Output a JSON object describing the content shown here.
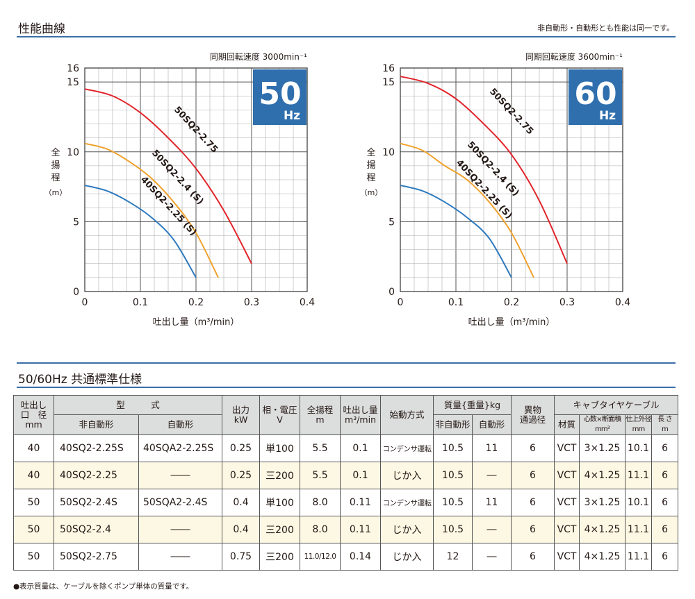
{
  "section1": {
    "title": "性能曲線",
    "note": "非自動形・自動形とも性能は同一です。"
  },
  "charts_common": {
    "ylabel_chars": [
      "全",
      "揚",
      "程"
    ],
    "yunit": "（m）",
    "xlabel": "吐出し量（m³/min）"
  },
  "chart_data": [
    {
      "type": "line",
      "speed_label": "同期回転速度 3000min⁻¹",
      "badge_big": "50",
      "badge_small": "Hz",
      "xlabel": "吐出し量（m³/min）",
      "ylabel": "全揚程（m）",
      "xlim": [
        0,
        0.4
      ],
      "ylim": [
        0,
        16
      ],
      "x_ticks": [
        "0",
        "0.1",
        "0.2",
        "0.3",
        "0.4"
      ],
      "y_ticks": [
        "0",
        "5",
        "10",
        "15",
        "16"
      ],
      "grid": true,
      "series": [
        {
          "name": "50SQ2-2.75",
          "color": "#e2242b",
          "points": [
            [
              0,
              14.5
            ],
            [
              0.05,
              14.0
            ],
            [
              0.1,
              12.8
            ],
            [
              0.15,
              11.0
            ],
            [
              0.2,
              8.8
            ],
            [
              0.25,
              5.8
            ],
            [
              0.3,
              2.0
            ]
          ]
        },
        {
          "name": "50SQ2-2.4 (S)",
          "color": "#f0a22e",
          "points": [
            [
              0,
              10.6
            ],
            [
              0.04,
              10.2
            ],
            [
              0.08,
              9.3
            ],
            [
              0.12,
              8.1
            ],
            [
              0.16,
              6.4
            ],
            [
              0.2,
              4.2
            ],
            [
              0.24,
              1.0
            ]
          ]
        },
        {
          "name": "40SQ2-2.25 (S)",
          "color": "#2d79be",
          "points": [
            [
              0,
              7.6
            ],
            [
              0.04,
              7.2
            ],
            [
              0.08,
              6.4
            ],
            [
              0.12,
              5.3
            ],
            [
              0.16,
              3.7
            ],
            [
              0.2,
              1.0
            ]
          ]
        }
      ]
    },
    {
      "type": "line",
      "speed_label": "同期回転速度 3600min⁻¹",
      "badge_big": "60",
      "badge_small": "Hz",
      "xlabel": "吐出し量（m³/min）",
      "ylabel": "全揚程（m）",
      "xlim": [
        0,
        0.4
      ],
      "ylim": [
        0,
        16
      ],
      "x_ticks": [
        "0",
        "0.1",
        "0.2",
        "0.3",
        "0.4"
      ],
      "y_ticks": [
        "0",
        "5",
        "10",
        "15",
        "16"
      ],
      "grid": true,
      "series": [
        {
          "name": "50SQ2-2.75",
          "color": "#e2242b",
          "points": [
            [
              0,
              15.4
            ],
            [
              0.05,
              14.9
            ],
            [
              0.1,
              13.8
            ],
            [
              0.15,
              12.0
            ],
            [
              0.2,
              9.8
            ],
            [
              0.25,
              6.5
            ],
            [
              0.3,
              2.0
            ]
          ]
        },
        {
          "name": "50SQ2-2.4 (S)",
          "color": "#f0a22e",
          "points": [
            [
              0,
              10.6
            ],
            [
              0.04,
              10.1
            ],
            [
              0.08,
              9.0
            ],
            [
              0.12,
              8.0
            ],
            [
              0.16,
              6.4
            ],
            [
              0.2,
              4.2
            ],
            [
              0.24,
              1.0
            ]
          ]
        },
        {
          "name": "40SQ2-2.25 (S)",
          "color": "#2d79be",
          "points": [
            [
              0,
              7.6
            ],
            [
              0.04,
              7.2
            ],
            [
              0.08,
              6.4
            ],
            [
              0.12,
              5.3
            ],
            [
              0.16,
              3.8
            ],
            [
              0.2,
              1.0
            ]
          ]
        }
      ]
    }
  ],
  "section2": {
    "title": "50/60Hz 共通標準仕様"
  },
  "table": {
    "h_bore": "吐出し",
    "h_bore2": "口　径",
    "h_bore_unit": "mm",
    "h_model": "型　　　式",
    "h_model_manual": "非自動形",
    "h_model_auto": "自動形",
    "h_output": "出力",
    "h_output_unit": "kW",
    "h_phase": "相・電圧",
    "h_phase_unit": "V",
    "h_head": "全揚程",
    "h_head_unit": "m",
    "h_flow": "吐出し量",
    "h_flow_unit": "m³/min",
    "h_start": "始動方式",
    "h_mass": "質量{重量}kg",
    "h_mass_manual": "非自動形",
    "h_mass_auto": "自動形",
    "h_solid": "異物",
    "h_solid2": "通過径",
    "h_solid_unit": "mm",
    "h_cable": "キャブタイヤケーブル",
    "h_cable_mat": "材質",
    "h_cable_core": "心数×断面積",
    "h_cable_core_unit": "mm²",
    "h_cable_od": "仕上外径",
    "h_cable_od_unit": "mm",
    "h_cable_len": "長 さ",
    "h_cable_len_unit": "m",
    "rows": [
      [
        "40",
        "40SQ2-2.25S",
        "40SQA2-2.25S",
        "0.25",
        "単100",
        "5.5",
        "0.1",
        "コンデンサ運転",
        "10.5",
        "11",
        "6",
        "VCT",
        "3×1.25",
        "10.1",
        "6"
      ],
      [
        "40",
        "40SQ2-2.25",
        "――",
        "0.25",
        "三200",
        "5.5",
        "0.1",
        "じか入",
        "10.5",
        "―",
        "6",
        "VCT",
        "4×1.25",
        "11.1",
        "6"
      ],
      [
        "50",
        "50SQ2-2.4S",
        "50SQA2-2.4S",
        "0.4",
        "単100",
        "8.0",
        "0.11",
        "コンデンサ運転",
        "10.5",
        "11",
        "6",
        "VCT",
        "3×1.25",
        "10.1",
        "6"
      ],
      [
        "50",
        "50SQ2-2.4",
        "――",
        "0.4",
        "三200",
        "8.0",
        "0.11",
        "じか入",
        "10.5",
        "―",
        "6",
        "VCT",
        "4×1.25",
        "11.1",
        "6"
      ],
      [
        "50",
        "50SQ2-2.75",
        "――",
        "0.75",
        "三200",
        "11.0/12.0",
        "0.14",
        "じか入",
        "12",
        "―",
        "6",
        "VCT",
        "4×1.25",
        "11.1",
        "6"
      ]
    ]
  },
  "footnote": "●表示質量は、ケーブルを除くポンプ単体の質量です。",
  "colors": {
    "accent": "#3a6fa8",
    "badge": "#2f6fae",
    "header_bg": "#dcdddd",
    "row_alt": "#fdf8e4"
  }
}
